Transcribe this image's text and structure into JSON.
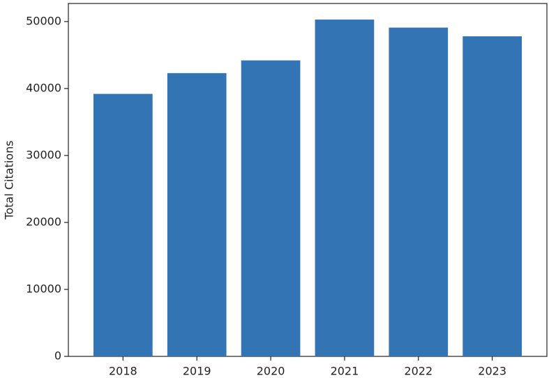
{
  "chart_data": {
    "type": "bar",
    "y_label": "Total Citations",
    "categories": [
      "2018",
      "2019",
      "2020",
      "2021",
      "2022",
      "2023"
    ],
    "values": [
      39200,
      42300,
      44200,
      50300,
      49100,
      47800
    ],
    "color": "#3274b4",
    "ylim": [
      0,
      52700
    ],
    "yticks": [
      0,
      10000,
      20000,
      30000,
      40000,
      50000
    ],
    "grid": false
  }
}
